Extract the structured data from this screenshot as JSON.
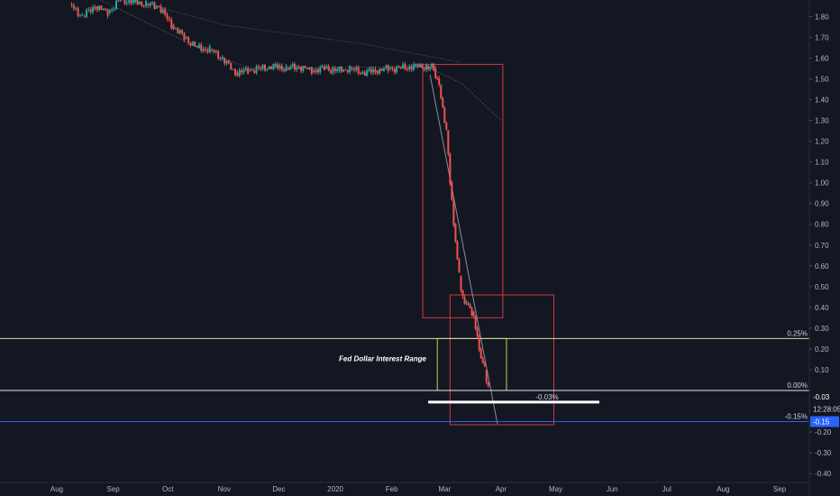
{
  "chart_data": {
    "type": "candlestick",
    "y_axis": {
      "ticks": [
        "1.80",
        "1.70",
        "1.60",
        "1.50",
        "1.40",
        "1.30",
        "1.20",
        "1.10",
        "1.00",
        "0.90",
        "0.80",
        "0.70",
        "0.60",
        "0.50",
        "0.40",
        "0.30",
        "0.20",
        "0.10",
        "-0.10",
        "-0.20",
        "-0.30",
        "-0.40"
      ],
      "ylim": [
        -0.43,
        1.88
      ]
    },
    "x_axis": {
      "ticks": [
        "Aug",
        "Sep",
        "Oct",
        "Nov",
        "Dec",
        "2020",
        "Feb",
        "Mar",
        "Apr",
        "May",
        "Jun",
        "Jul",
        "Aug",
        "Sep"
      ]
    },
    "series": [
      {
        "values": [
          [
            "2019-08-08",
            1.86
          ],
          [
            "2019-08-15",
            1.8
          ],
          [
            "2019-08-22",
            1.85
          ],
          [
            "2019-08-29",
            1.82
          ],
          [
            "2019-09-05",
            1.88
          ],
          [
            "2019-09-12",
            1.87
          ],
          [
            "2019-09-19",
            1.86
          ],
          [
            "2019-09-26",
            1.85
          ],
          [
            "2019-10-03",
            1.76
          ],
          [
            "2019-10-10",
            1.7
          ],
          [
            "2019-10-17",
            1.65
          ],
          [
            "2019-10-24",
            1.64
          ],
          [
            "2019-10-31",
            1.6
          ],
          [
            "2019-11-07",
            1.53
          ],
          [
            "2019-11-14",
            1.54
          ],
          [
            "2019-11-21",
            1.55
          ],
          [
            "2019-11-28",
            1.56
          ],
          [
            "2019-12-05",
            1.55
          ],
          [
            "2019-12-12",
            1.56
          ],
          [
            "2019-12-19",
            1.54
          ],
          [
            "2019-12-26",
            1.55
          ],
          [
            "2020-01-02",
            1.54
          ],
          [
            "2020-01-09",
            1.55
          ],
          [
            "2020-01-16",
            1.53
          ],
          [
            "2020-01-23",
            1.54
          ],
          [
            "2020-01-30",
            1.55
          ],
          [
            "2020-02-06",
            1.55
          ],
          [
            "2020-02-13",
            1.56
          ],
          [
            "2020-02-20",
            1.56
          ],
          [
            "2020-02-24",
            1.55
          ],
          [
            "2020-02-27",
            1.47
          ],
          [
            "2020-03-02",
            1.25
          ],
          [
            "2020-03-04",
            1.0
          ],
          [
            "2020-03-06",
            0.8
          ],
          [
            "2020-03-09",
            0.55
          ],
          [
            "2020-03-11",
            0.45
          ],
          [
            "2020-03-13",
            0.42
          ],
          [
            "2020-03-16",
            0.38
          ],
          [
            "2020-03-18",
            0.3
          ],
          [
            "2020-03-20",
            0.2
          ],
          [
            "2020-03-23",
            0.1
          ],
          [
            "2020-03-25",
            0.02
          ]
        ]
      }
    ],
    "horizontal_lines": [
      {
        "label": "0.25%",
        "value": 0.25,
        "color": "#d9d7a6"
      },
      {
        "label": "0.00%",
        "value": 0.0,
        "color": "#e5e5e5"
      },
      {
        "label": "-0.15%",
        "value": -0.15,
        "color": "#2962ff"
      }
    ],
    "support_line": {
      "label": "-0.03%",
      "value": -0.03
    },
    "annotations": [
      {
        "text": "Fed Dollar Interest Range"
      }
    ],
    "price_badges": [
      {
        "text": "-0.03",
        "bg": "#131722",
        "fg": "#ffffff"
      },
      {
        "text": "12:28:05",
        "bg": "#131722",
        "fg": "#d1d4dc"
      },
      {
        "text": "-0.15",
        "bg": "#2962ff",
        "fg": "#ffffff"
      }
    ],
    "colors": {
      "up": "#26a69a",
      "down": "#ef5350",
      "box": "#d2373f",
      "range_box": "#d4c84a"
    }
  }
}
